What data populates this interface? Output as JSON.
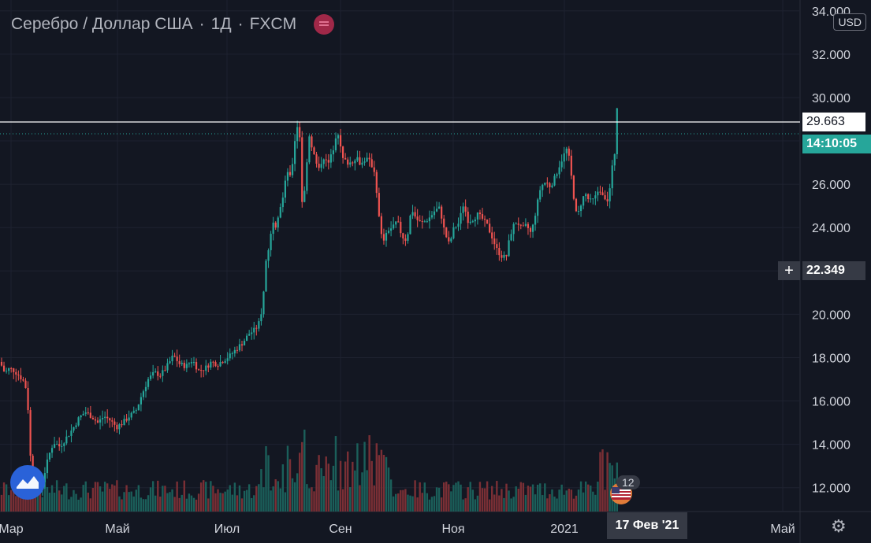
{
  "header": {
    "symbol": "Серебро / Доллар США",
    "interval": "1Д",
    "exchange": "FXCM",
    "separator": "·",
    "currency": "USD"
  },
  "price_axis": {
    "last_price": "29.663",
    "countdown": "14:10:05",
    "crosshair_price": "22.349"
  },
  "time_axis": {
    "crosshair_date": "17 Фев '21"
  },
  "events": {
    "count": "12"
  },
  "colors": {
    "background": "#131722",
    "up": "#26a69a",
    "down": "#ef5350",
    "volume_up": "#1b5f5a",
    "volume_down": "#7a2f35",
    "grid": "#1e2230",
    "axis_text": "#d1d4dc"
  },
  "chart_data": {
    "type": "candlestick",
    "x_labels": [
      "Мар",
      "Май",
      "Июл",
      "Сен",
      "Ноя",
      "2021",
      "Май"
    ],
    "y_ticks": [
      "12.000",
      "14.000",
      "16.000",
      "18.000",
      "20.000",
      "22.000",
      "24.000",
      "26.000",
      "28.000",
      "30.000",
      "32.000",
      "34.000"
    ],
    "ylim": [
      10.9,
      34.5
    ],
    "legend": "none",
    "grid": true,
    "horizontal_line": 29.663,
    "crosshair": 22.349,
    "close_path": [
      [
        0,
        17.8
      ],
      [
        6,
        17.3
      ],
      [
        12,
        17.5
      ],
      [
        18,
        17.4
      ],
      [
        26,
        17.1
      ],
      [
        32,
        16.8
      ],
      [
        36,
        15.5
      ],
      [
        38,
        13.9
      ],
      [
        40,
        12.4
      ],
      [
        43,
        12.1
      ],
      [
        50,
        11.8
      ],
      [
        56,
        12.6
      ],
      [
        62,
        13.5
      ],
      [
        68,
        14.1
      ],
      [
        76,
        13.9
      ],
      [
        84,
        14.3
      ],
      [
        92,
        14.7
      ],
      [
        100,
        15.2
      ],
      [
        108,
        15.5
      ],
      [
        116,
        15.3
      ],
      [
        124,
        15.0
      ],
      [
        132,
        15.3
      ],
      [
        140,
        15.1
      ],
      [
        148,
        14.8
      ],
      [
        156,
        15.0
      ],
      [
        164,
        15.3
      ],
      [
        172,
        15.5
      ],
      [
        180,
        16.3
      ],
      [
        188,
        17.0
      ],
      [
        196,
        17.3
      ],
      [
        204,
        17.2
      ],
      [
        212,
        17.6
      ],
      [
        220,
        18.1
      ],
      [
        228,
        17.7
      ],
      [
        236,
        17.6
      ],
      [
        244,
        17.9
      ],
      [
        252,
        17.4
      ],
      [
        260,
        17.5
      ],
      [
        268,
        17.8
      ],
      [
        276,
        17.7
      ],
      [
        284,
        17.9
      ],
      [
        292,
        18.1
      ],
      [
        300,
        18.4
      ],
      [
        308,
        18.7
      ],
      [
        316,
        19.1
      ],
      [
        324,
        19.3
      ],
      [
        330,
        19.7
      ],
      [
        334,
        20.8
      ],
      [
        338,
        22.7
      ],
      [
        342,
        23.2
      ],
      [
        346,
        24.4
      ],
      [
        350,
        24.1
      ],
      [
        354,
        24.8
      ],
      [
        360,
        25.5
      ],
      [
        364,
        26.7
      ],
      [
        368,
        26.3
      ],
      [
        372,
        27.2
      ],
      [
        376,
        28.8
      ],
      [
        380,
        28.4
      ],
      [
        384,
        24.5
      ],
      [
        388,
        26.5
      ],
      [
        392,
        28.3
      ],
      [
        398,
        27.4
      ],
      [
        404,
        26.6
      ],
      [
        410,
        27.3
      ],
      [
        416,
        26.9
      ],
      [
        422,
        27.5
      ],
      [
        428,
        28.6
      ],
      [
        434,
        27.2
      ],
      [
        440,
        27.0
      ],
      [
        446,
        27.0
      ],
      [
        452,
        27.3
      ],
      [
        458,
        26.9
      ],
      [
        464,
        27.2
      ],
      [
        470,
        27.0
      ],
      [
        476,
        26.5
      ],
      [
        480,
        24.7
      ],
      [
        484,
        23.6
      ],
      [
        488,
        23.4
      ],
      [
        492,
        23.9
      ],
      [
        498,
        24.0
      ],
      [
        504,
        24.3
      ],
      [
        510,
        23.6
      ],
      [
        516,
        23.4
      ],
      [
        522,
        24.9
      ],
      [
        528,
        24.4
      ],
      [
        534,
        24.2
      ],
      [
        540,
        24.3
      ],
      [
        546,
        24.5
      ],
      [
        552,
        24.8
      ],
      [
        558,
        24.9
      ],
      [
        564,
        23.8
      ],
      [
        570,
        23.2
      ],
      [
        576,
        24.0
      ],
      [
        582,
        24.2
      ],
      [
        588,
        25.1
      ],
      [
        594,
        24.3
      ],
      [
        600,
        24.4
      ],
      [
        606,
        24.6
      ],
      [
        612,
        24.4
      ],
      [
        618,
        24.1
      ],
      [
        624,
        23.6
      ],
      [
        630,
        23.0
      ],
      [
        636,
        22.7
      ],
      [
        642,
        22.6
      ],
      [
        646,
        23.4
      ],
      [
        650,
        24.0
      ],
      [
        656,
        24.3
      ],
      [
        662,
        23.9
      ],
      [
        668,
        24.1
      ],
      [
        674,
        23.7
      ],
      [
        680,
        24.8
      ],
      [
        686,
        25.9
      ],
      [
        692,
        26.1
      ],
      [
        698,
        25.9
      ],
      [
        704,
        26.3
      ],
      [
        710,
        26.9
      ],
      [
        716,
        27.4
      ],
      [
        720,
        27.7
      ],
      [
        724,
        26.6
      ],
      [
        728,
        25.4
      ],
      [
        732,
        24.4
      ],
      [
        736,
        25.0
      ],
      [
        742,
        25.6
      ],
      [
        748,
        25.2
      ],
      [
        754,
        25.3
      ],
      [
        760,
        25.8
      ],
      [
        766,
        25.5
      ],
      [
        772,
        25.2
      ],
      [
        776,
        26.6
      ],
      [
        780,
        27.5
      ],
      [
        783,
        29.7
      ]
    ]
  }
}
